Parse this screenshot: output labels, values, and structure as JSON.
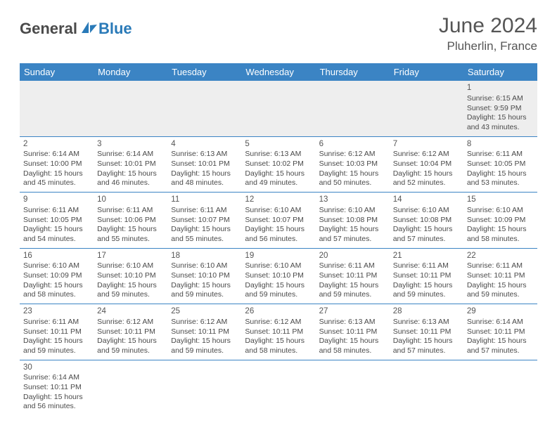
{
  "logo": {
    "text1": "General",
    "text2": "Blue",
    "accent": "#2a7ab8"
  },
  "title": "June 2024",
  "location": "Pluherlin, France",
  "dayHeaders": [
    "Sunday",
    "Monday",
    "Tuesday",
    "Wednesday",
    "Thursday",
    "Friday",
    "Saturday"
  ],
  "colors": {
    "header_bg": "#3b84c4",
    "header_text": "#ffffff",
    "border": "#3b84c4",
    "blank_bg": "#eeeeee",
    "text": "#4a4a4a"
  },
  "weeks": [
    [
      null,
      null,
      null,
      null,
      null,
      null,
      {
        "n": "1",
        "sr": "6:15 AM",
        "ss": "9:59 PM",
        "dl": "15 hours and 43 minutes."
      }
    ],
    [
      {
        "n": "2",
        "sr": "6:14 AM",
        "ss": "10:00 PM",
        "dl": "15 hours and 45 minutes."
      },
      {
        "n": "3",
        "sr": "6:14 AM",
        "ss": "10:01 PM",
        "dl": "15 hours and 46 minutes."
      },
      {
        "n": "4",
        "sr": "6:13 AM",
        "ss": "10:01 PM",
        "dl": "15 hours and 48 minutes."
      },
      {
        "n": "5",
        "sr": "6:13 AM",
        "ss": "10:02 PM",
        "dl": "15 hours and 49 minutes."
      },
      {
        "n": "6",
        "sr": "6:12 AM",
        "ss": "10:03 PM",
        "dl": "15 hours and 50 minutes."
      },
      {
        "n": "7",
        "sr": "6:12 AM",
        "ss": "10:04 PM",
        "dl": "15 hours and 52 minutes."
      },
      {
        "n": "8",
        "sr": "6:11 AM",
        "ss": "10:05 PM",
        "dl": "15 hours and 53 minutes."
      }
    ],
    [
      {
        "n": "9",
        "sr": "6:11 AM",
        "ss": "10:05 PM",
        "dl": "15 hours and 54 minutes."
      },
      {
        "n": "10",
        "sr": "6:11 AM",
        "ss": "10:06 PM",
        "dl": "15 hours and 55 minutes."
      },
      {
        "n": "11",
        "sr": "6:11 AM",
        "ss": "10:07 PM",
        "dl": "15 hours and 55 minutes."
      },
      {
        "n": "12",
        "sr": "6:10 AM",
        "ss": "10:07 PM",
        "dl": "15 hours and 56 minutes."
      },
      {
        "n": "13",
        "sr": "6:10 AM",
        "ss": "10:08 PM",
        "dl": "15 hours and 57 minutes."
      },
      {
        "n": "14",
        "sr": "6:10 AM",
        "ss": "10:08 PM",
        "dl": "15 hours and 57 minutes."
      },
      {
        "n": "15",
        "sr": "6:10 AM",
        "ss": "10:09 PM",
        "dl": "15 hours and 58 minutes."
      }
    ],
    [
      {
        "n": "16",
        "sr": "6:10 AM",
        "ss": "10:09 PM",
        "dl": "15 hours and 58 minutes."
      },
      {
        "n": "17",
        "sr": "6:10 AM",
        "ss": "10:10 PM",
        "dl": "15 hours and 59 minutes."
      },
      {
        "n": "18",
        "sr": "6:10 AM",
        "ss": "10:10 PM",
        "dl": "15 hours and 59 minutes."
      },
      {
        "n": "19",
        "sr": "6:10 AM",
        "ss": "10:10 PM",
        "dl": "15 hours and 59 minutes."
      },
      {
        "n": "20",
        "sr": "6:11 AM",
        "ss": "10:11 PM",
        "dl": "15 hours and 59 minutes."
      },
      {
        "n": "21",
        "sr": "6:11 AM",
        "ss": "10:11 PM",
        "dl": "15 hours and 59 minutes."
      },
      {
        "n": "22",
        "sr": "6:11 AM",
        "ss": "10:11 PM",
        "dl": "15 hours and 59 minutes."
      }
    ],
    [
      {
        "n": "23",
        "sr": "6:11 AM",
        "ss": "10:11 PM",
        "dl": "15 hours and 59 minutes."
      },
      {
        "n": "24",
        "sr": "6:12 AM",
        "ss": "10:11 PM",
        "dl": "15 hours and 59 minutes."
      },
      {
        "n": "25",
        "sr": "6:12 AM",
        "ss": "10:11 PM",
        "dl": "15 hours and 59 minutes."
      },
      {
        "n": "26",
        "sr": "6:12 AM",
        "ss": "10:11 PM",
        "dl": "15 hours and 58 minutes."
      },
      {
        "n": "27",
        "sr": "6:13 AM",
        "ss": "10:11 PM",
        "dl": "15 hours and 58 minutes."
      },
      {
        "n": "28",
        "sr": "6:13 AM",
        "ss": "10:11 PM",
        "dl": "15 hours and 57 minutes."
      },
      {
        "n": "29",
        "sr": "6:14 AM",
        "ss": "10:11 PM",
        "dl": "15 hours and 57 minutes."
      }
    ],
    [
      {
        "n": "30",
        "sr": "6:14 AM",
        "ss": "10:11 PM",
        "dl": "15 hours and 56 minutes."
      },
      null,
      null,
      null,
      null,
      null,
      null
    ]
  ],
  "labels": {
    "sunrise": "Sunrise:",
    "sunset": "Sunset:",
    "daylight": "Daylight:"
  }
}
